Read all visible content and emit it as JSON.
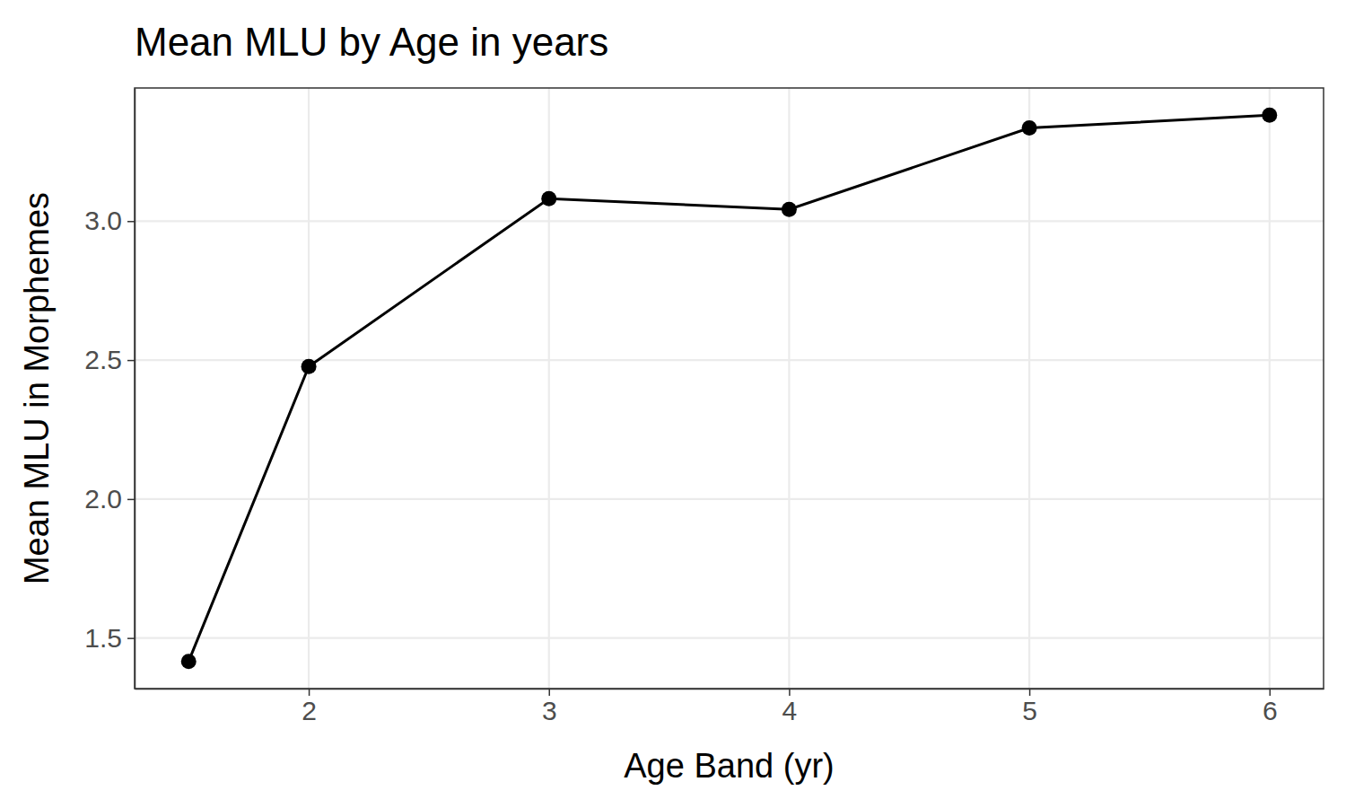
{
  "chart_data": {
    "type": "line",
    "title": "Mean MLU by Age in years",
    "x_label": "Age Band (yr)",
    "y_label": "Mean MLU in Morphemes",
    "x": [
      1.5,
      2,
      3,
      4,
      5,
      6
    ],
    "values": [
      1.416,
      2.477,
      3.081,
      3.042,
      3.335,
      3.381
    ],
    "color": "#000000",
    "marker": "circle",
    "grid": true,
    "xlim": [
      1.275,
      6.225
    ],
    "xticks": [
      2,
      3,
      4,
      5,
      6
    ],
    "ylim": [
      1.318,
      3.479
    ],
    "yticks": [
      1.5,
      {
        "value": 2,
        "label": "2.0"
      },
      2.5,
      {
        "value": 3,
        "label": "3.0"
      }
    ]
  }
}
